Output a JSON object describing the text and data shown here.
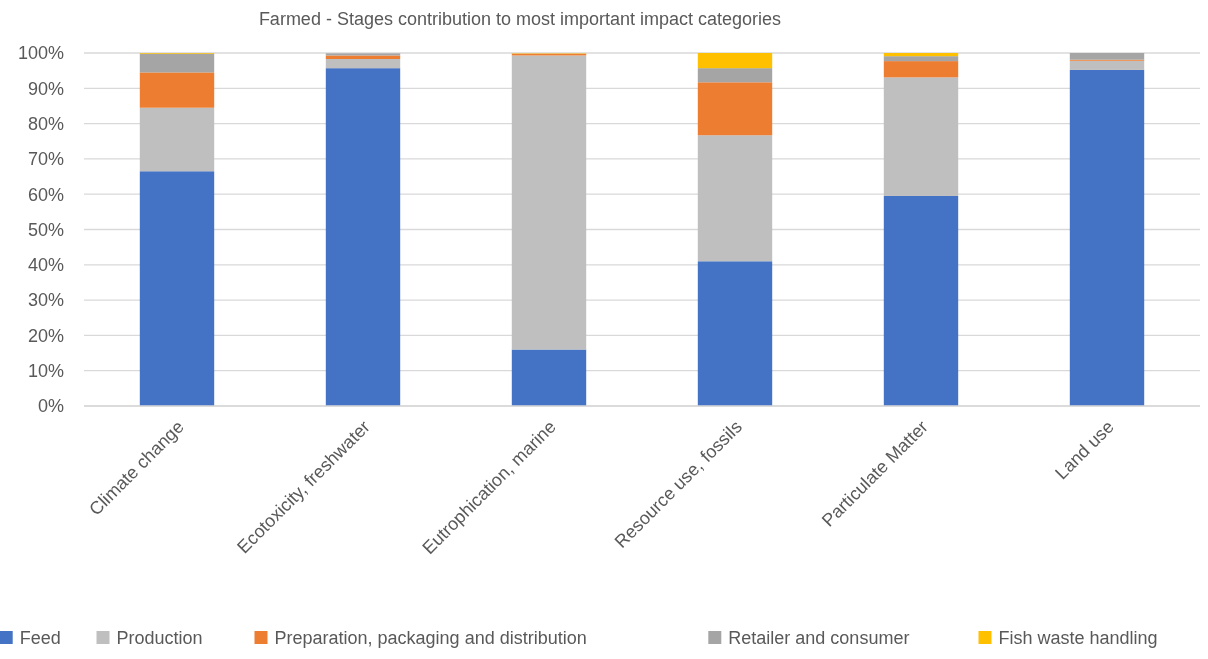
{
  "chart_data": {
    "type": "bar",
    "title": "Farmed - Stages contribution to most important impact categories",
    "categories": [
      "Climate change",
      "Ecotoxicity, freshwater",
      "Eutrophication, marine",
      "Resource use, fossils",
      "Particulate Matter",
      "Land use"
    ],
    "stacked": true,
    "ylim": [
      0,
      100
    ],
    "yticks": [
      {
        "value": 0,
        "label": "0%"
      },
      {
        "value": 10,
        "label": "10%"
      },
      {
        "value": 20,
        "label": "20%"
      },
      {
        "value": 30,
        "label": "30%"
      },
      {
        "value": 40,
        "label": "40%"
      },
      {
        "value": 50,
        "label": "50%"
      },
      {
        "value": 60,
        "label": "60%"
      },
      {
        "value": 70,
        "label": "70%"
      },
      {
        "value": 80,
        "label": "80%"
      },
      {
        "value": 90,
        "label": "90%"
      },
      {
        "value": 100,
        "label": "100%"
      }
    ],
    "grid": "y",
    "legend": "bottom",
    "series": [
      {
        "name": "Feed",
        "color": "#4472c4",
        "values": [
          66.5,
          95.7,
          16,
          41,
          59.5,
          95.2
        ]
      },
      {
        "name": "Production",
        "color": "#bfbfbf",
        "values": [
          18,
          2.6,
          83.3,
          35.7,
          33.6,
          2.6
        ]
      },
      {
        "name": "Preparation, packaging and distribution",
        "color": "#ed7d31",
        "values": [
          10,
          1,
          0.5,
          15,
          4.6,
          0.3
        ]
      },
      {
        "name": "Retailer and consumer",
        "color": "#a5a5a5",
        "values": [
          5.3,
          0.6,
          null,
          4,
          1.4,
          1.9
        ]
      },
      {
        "name": "Fish waste handling",
        "color": "#ffc000",
        "values": [
          0.2,
          null,
          0.1,
          4.3,
          0.9,
          0
        ]
      }
    ]
  }
}
